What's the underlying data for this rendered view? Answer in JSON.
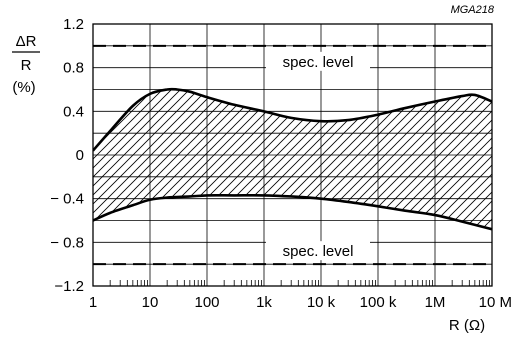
{
  "figure_code": "MGA218",
  "chart_data": {
    "type": "area",
    "x_scale": "log",
    "xlim": [
      1,
      10000000
    ],
    "ylim": [
      -1.2,
      1.2
    ],
    "grid": true,
    "xlabel": "R (Ω)",
    "ylabel": {
      "delta": "ΔR",
      "denominator": "R",
      "unit": "(%)"
    },
    "x_ticks": [
      {
        "value": 1,
        "label": "1"
      },
      {
        "value": 10,
        "label": "10"
      },
      {
        "value": 100,
        "label": "100"
      },
      {
        "value": 1000,
        "label": "1k"
      },
      {
        "value": 10000,
        "label": "10 k"
      },
      {
        "value": 100000,
        "label": "100 k"
      },
      {
        "value": 1000000,
        "label": "1M"
      },
      {
        "value": 10000000,
        "label": "10 M"
      }
    ],
    "y_ticks": [
      {
        "value": 1.2,
        "label": "1.2"
      },
      {
        "value": 0.8,
        "label": "0.8"
      },
      {
        "value": 0.4,
        "label": "0.4"
      },
      {
        "value": 0,
        "label": "0"
      },
      {
        "value": -0.4,
        "label": "− 0.4"
      },
      {
        "value": -0.8,
        "label": "− 0.8"
      },
      {
        "value": -1.2,
        "label": "−1.2"
      }
    ],
    "y_gridlines": [
      1.2,
      1.0,
      0.8,
      0.6,
      0.4,
      0.2,
      0,
      -0.2,
      -0.4,
      -0.6,
      -0.8,
      -1.0,
      -1.2
    ],
    "series": [
      {
        "role": "upper",
        "x": [
          1,
          2,
          5,
          10,
          20,
          30,
          50,
          100,
          300,
          1000,
          3000,
          10000,
          30000,
          100000,
          300000,
          1000000,
          3000000,
          5000000,
          10000000
        ],
        "values": [
          0.04,
          0.22,
          0.45,
          0.56,
          0.6,
          0.6,
          0.58,
          0.53,
          0.46,
          0.4,
          0.34,
          0.31,
          0.32,
          0.37,
          0.43,
          0.49,
          0.54,
          0.55,
          0.49
        ]
      },
      {
        "role": "lower",
        "x": [
          1,
          2,
          5,
          10,
          20,
          50,
          100,
          300,
          1000,
          3000,
          10000,
          30000,
          100000,
          300000,
          1000000,
          3000000,
          10000000
        ],
        "values": [
          -0.6,
          -0.53,
          -0.46,
          -0.41,
          -0.39,
          -0.38,
          -0.37,
          -0.37,
          -0.37,
          -0.38,
          -0.4,
          -0.43,
          -0.47,
          -0.51,
          -0.55,
          -0.61,
          -0.68
        ]
      }
    ],
    "reference_lines": [
      {
        "value": 1.0,
        "label": "spec. level"
      },
      {
        "value": -1.0,
        "label": "spec. level"
      }
    ]
  }
}
